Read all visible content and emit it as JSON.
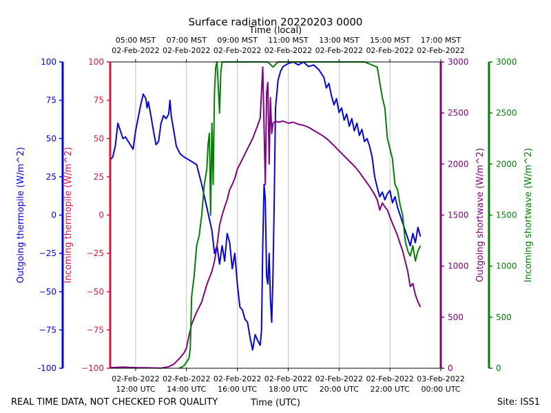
{
  "chart_data": {
    "type": "line",
    "title": "Surface radiation 20220203 0000",
    "top_axis_label": "Time (local)",
    "xlabel": "Time (UTC)",
    "footer_left": "REAL TIME DATA, NOT CHECKED FOR QUALITY",
    "footer_right": "Site: ISS1",
    "x_range_hours": [
      11,
      24
    ],
    "x_ticks_utc": [
      {
        "line1": "02-Feb-2022",
        "line2": "12:00 UTC"
      },
      {
        "line1": "02-Feb-2022",
        "line2": "14:00 UTC"
      },
      {
        "line1": "02-Feb-2022",
        "line2": "16:00 UTC"
      },
      {
        "line1": "02-Feb-2022",
        "line2": "18:00 UTC"
      },
      {
        "line1": "02-Feb-2022",
        "line2": "20:00 UTC"
      },
      {
        "line1": "02-Feb-2022",
        "line2": "22:00 UTC"
      },
      {
        "line1": "03-Feb-2022",
        "line2": "00:00 UTC"
      }
    ],
    "x_ticks_local": [
      {
        "line1": "05:00 MST",
        "line2": "02-Feb-2022"
      },
      {
        "line1": "07:00 MST",
        "line2": "02-Feb-2022"
      },
      {
        "line1": "09:00 MST",
        "line2": "02-Feb-2022"
      },
      {
        "line1": "11:00 MST",
        "line2": "02-Feb-2022"
      },
      {
        "line1": "13:00 MST",
        "line2": "02-Feb-2022"
      },
      {
        "line1": "15:00 MST",
        "line2": "02-Feb-2022"
      },
      {
        "line1": "17:00 MST",
        "line2": "02-Feb-2022"
      }
    ],
    "grid": "vertical",
    "axes": {
      "outgoing_thermopile": {
        "label": "Outgoing thermopile (W/m^2)",
        "color": "#0000ee",
        "range": [
          -100,
          100
        ],
        "ticks": [
          "-100",
          "−75",
          "−50",
          "−25",
          "0",
          "25",
          "50",
          "75",
          "100"
        ],
        "tick_values": [
          -100,
          -75,
          -50,
          -25,
          0,
          25,
          50,
          75,
          100
        ]
      },
      "incoming_thermopile": {
        "label": "Incoming thermopile (W/m^2)",
        "color": "#dc143c",
        "range": [
          -100,
          100
        ],
        "ticks": [
          "−100",
          "−75",
          "−50",
          "−25",
          "0",
          "25",
          "50",
          "75",
          "100"
        ],
        "tick_values": [
          -100,
          -75,
          -50,
          -25,
          0,
          25,
          50,
          75,
          100
        ]
      },
      "outgoing_shortwave": {
        "label": "Outgoing shortwave (W/m^2)",
        "color": "#800080",
        "range": [
          0,
          3000
        ],
        "ticks": [
          "0",
          "500",
          "1000",
          "1500",
          "2000",
          "2500",
          "3000"
        ],
        "tick_values": [
          0,
          500,
          1000,
          1500,
          2000,
          2500,
          3000
        ]
      },
      "incoming_shortwave": {
        "label": "Incoming shortwave (W/m^2)",
        "color": "#008000",
        "range": [
          0,
          3000
        ],
        "ticks": [
          "0",
          "500",
          "1000",
          "1500",
          "2000",
          "2500",
          "3000"
        ],
        "tick_values": [
          0,
          500,
          1000,
          1500,
          2000,
          2500,
          3000
        ]
      }
    },
    "series": [
      {
        "axis": "outgoing_thermopile",
        "color": "#0000ee",
        "points": [
          [
            11,
            36
          ],
          [
            11.1,
            38
          ],
          [
            11.2,
            45
          ],
          [
            11.3,
            60
          ],
          [
            11.4,
            55
          ],
          [
            11.5,
            50
          ],
          [
            11.6,
            51
          ],
          [
            11.75,
            47
          ],
          [
            11.9,
            43
          ],
          [
            12.0,
            55
          ],
          [
            12.2,
            72
          ],
          [
            12.3,
            79
          ],
          [
            12.4,
            76
          ],
          [
            12.45,
            70
          ],
          [
            12.5,
            74
          ],
          [
            12.6,
            65
          ],
          [
            12.7,
            55
          ],
          [
            12.8,
            46
          ],
          [
            12.9,
            48
          ],
          [
            13.0,
            60
          ],
          [
            13.1,
            65
          ],
          [
            13.2,
            63
          ],
          [
            13.3,
            66
          ],
          [
            13.35,
            75
          ],
          [
            13.4,
            65
          ],
          [
            13.5,
            55
          ],
          [
            13.6,
            45
          ],
          [
            13.75,
            40
          ],
          [
            13.9,
            38
          ],
          [
            14.0,
            37
          ],
          [
            14.2,
            35
          ],
          [
            14.4,
            33
          ],
          [
            14.6,
            20
          ],
          [
            14.8,
            5
          ],
          [
            15.0,
            -10
          ],
          [
            15.1,
            -25
          ],
          [
            15.2,
            -20
          ],
          [
            15.3,
            -32
          ],
          [
            15.4,
            -20
          ],
          [
            15.5,
            -30
          ],
          [
            15.6,
            -12
          ],
          [
            15.7,
            -18
          ],
          [
            15.8,
            -35
          ],
          [
            15.9,
            -25
          ],
          [
            16.0,
            -45
          ],
          [
            16.1,
            -60
          ],
          [
            16.2,
            -62
          ],
          [
            16.3,
            -68
          ],
          [
            16.4,
            -70
          ],
          [
            16.5,
            -80
          ],
          [
            16.6,
            -88
          ],
          [
            16.7,
            -78
          ],
          [
            16.8,
            -82
          ],
          [
            16.9,
            -85
          ],
          [
            16.95,
            -75
          ],
          [
            17.0,
            -20
          ],
          [
            17.05,
            20
          ],
          [
            17.1,
            10
          ],
          [
            17.15,
            -40
          ],
          [
            17.2,
            -45
          ],
          [
            17.25,
            -25
          ],
          [
            17.3,
            -55
          ],
          [
            17.35,
            -70
          ],
          [
            17.4,
            -40
          ],
          [
            17.45,
            10
          ],
          [
            17.5,
            70
          ],
          [
            17.6,
            88
          ],
          [
            17.7,
            94
          ],
          [
            17.8,
            97
          ],
          [
            18.0,
            99
          ],
          [
            18.2,
            100
          ],
          [
            18.4,
            98
          ],
          [
            18.6,
            100
          ],
          [
            18.8,
            97
          ],
          [
            19.0,
            98
          ],
          [
            19.2,
            95
          ],
          [
            19.4,
            90
          ],
          [
            19.5,
            83
          ],
          [
            19.6,
            86
          ],
          [
            19.7,
            78
          ],
          [
            19.8,
            72
          ],
          [
            19.9,
            76
          ],
          [
            20.0,
            67
          ],
          [
            20.1,
            70
          ],
          [
            20.2,
            62
          ],
          [
            20.3,
            66
          ],
          [
            20.4,
            58
          ],
          [
            20.5,
            63
          ],
          [
            20.6,
            55
          ],
          [
            20.7,
            60
          ],
          [
            20.8,
            52
          ],
          [
            20.9,
            56
          ],
          [
            21.0,
            48
          ],
          [
            21.1,
            50
          ],
          [
            21.2,
            45
          ],
          [
            21.3,
            38
          ],
          [
            21.4,
            25
          ],
          [
            21.5,
            18
          ],
          [
            21.6,
            12
          ],
          [
            21.7,
            15
          ],
          [
            21.8,
            10
          ],
          [
            21.9,
            14
          ],
          [
            22.0,
            16
          ],
          [
            22.1,
            8
          ],
          [
            22.2,
            12
          ],
          [
            22.3,
            5
          ],
          [
            22.4,
            0
          ],
          [
            22.5,
            -5
          ],
          [
            22.6,
            -10
          ],
          [
            22.7,
            -15
          ],
          [
            22.8,
            -20
          ],
          [
            22.9,
            -12
          ],
          [
            23.0,
            -18
          ],
          [
            23.1,
            -8
          ],
          [
            23.2,
            -14
          ]
        ]
      },
      {
        "axis": "outgoing_shortwave",
        "color": "#800080",
        "points": [
          [
            11,
            5
          ],
          [
            11.5,
            12
          ],
          [
            12.0,
            6
          ],
          [
            12.5,
            4
          ],
          [
            13.0,
            2
          ],
          [
            13.3,
            15
          ],
          [
            13.5,
            40
          ],
          [
            13.7,
            90
          ],
          [
            13.9,
            150
          ],
          [
            14.0,
            200
          ],
          [
            14.1,
            320
          ],
          [
            14.2,
            430
          ],
          [
            14.4,
            550
          ],
          [
            14.6,
            650
          ],
          [
            14.8,
            820
          ],
          [
            15.0,
            950
          ],
          [
            15.1,
            1050
          ],
          [
            15.2,
            1200
          ],
          [
            15.3,
            1400
          ],
          [
            15.4,
            1500
          ],
          [
            15.5,
            1580
          ],
          [
            15.6,
            1650
          ],
          [
            15.7,
            1750
          ],
          [
            15.8,
            1800
          ],
          [
            15.9,
            1860
          ],
          [
            16.0,
            1950
          ],
          [
            16.2,
            2050
          ],
          [
            16.4,
            2150
          ],
          [
            16.6,
            2250
          ],
          [
            16.8,
            2380
          ],
          [
            16.9,
            2450
          ],
          [
            17.0,
            2950
          ],
          [
            17.1,
            1800
          ],
          [
            17.15,
            2700
          ],
          [
            17.2,
            2800
          ],
          [
            17.25,
            2000
          ],
          [
            17.3,
            2650
          ],
          [
            17.35,
            2300
          ],
          [
            17.4,
            2400
          ],
          [
            17.5,
            2420
          ],
          [
            17.6,
            2410
          ],
          [
            17.8,
            2420
          ],
          [
            18.0,
            2400
          ],
          [
            18.2,
            2410
          ],
          [
            18.4,
            2390
          ],
          [
            18.6,
            2380
          ],
          [
            18.8,
            2360
          ],
          [
            19.0,
            2330
          ],
          [
            19.2,
            2300
          ],
          [
            19.4,
            2270
          ],
          [
            19.6,
            2230
          ],
          [
            19.8,
            2180
          ],
          [
            20.0,
            2130
          ],
          [
            20.2,
            2080
          ],
          [
            20.4,
            2030
          ],
          [
            20.6,
            1980
          ],
          [
            20.8,
            1920
          ],
          [
            21.0,
            1850
          ],
          [
            21.2,
            1780
          ],
          [
            21.4,
            1700
          ],
          [
            21.5,
            1650
          ],
          [
            21.6,
            1550
          ],
          [
            21.7,
            1620
          ],
          [
            21.8,
            1580
          ],
          [
            21.9,
            1550
          ],
          [
            22.0,
            1480
          ],
          [
            22.1,
            1420
          ],
          [
            22.2,
            1360
          ],
          [
            22.3,
            1300
          ],
          [
            22.4,
            1220
          ],
          [
            22.5,
            1150
          ],
          [
            22.6,
            1050
          ],
          [
            22.7,
            950
          ],
          [
            22.8,
            800
          ],
          [
            22.9,
            830
          ],
          [
            23.0,
            720
          ],
          [
            23.1,
            650
          ],
          [
            23.2,
            600
          ]
        ]
      },
      {
        "axis": "incoming_shortwave",
        "color": "#008000",
        "points": [
          [
            13.7,
            0
          ],
          [
            13.8,
            10
          ],
          [
            13.9,
            25
          ],
          [
            14.0,
            60
          ],
          [
            14.1,
            100
          ],
          [
            14.15,
            200
          ],
          [
            14.2,
            700
          ],
          [
            14.3,
            900
          ],
          [
            14.4,
            1200
          ],
          [
            14.5,
            1300
          ],
          [
            14.6,
            1500
          ],
          [
            14.7,
            1800
          ],
          [
            14.8,
            1950
          ],
          [
            14.85,
            2200
          ],
          [
            14.9,
            2300
          ],
          [
            14.95,
            1500
          ],
          [
            15.0,
            2400
          ],
          [
            15.05,
            1800
          ],
          [
            15.1,
            2700
          ],
          [
            15.15,
            2950
          ],
          [
            15.2,
            3000
          ],
          [
            15.3,
            2500
          ],
          [
            15.35,
            2900
          ],
          [
            15.4,
            3000
          ],
          [
            17.2,
            3000
          ],
          [
            17.4,
            2950
          ],
          [
            17.6,
            3000
          ],
          [
            19.0,
            3000
          ],
          [
            21.0,
            3000
          ],
          [
            21.5,
            2950
          ],
          [
            21.6,
            2800
          ],
          [
            21.7,
            2650
          ],
          [
            21.8,
            2550
          ],
          [
            21.9,
            2250
          ],
          [
            22.0,
            2150
          ],
          [
            22.1,
            2050
          ],
          [
            22.2,
            1800
          ],
          [
            22.3,
            1750
          ],
          [
            22.4,
            1600
          ],
          [
            22.5,
            1500
          ],
          [
            22.6,
            1250
          ],
          [
            22.7,
            1150
          ],
          [
            22.8,
            1100
          ],
          [
            22.9,
            1200
          ],
          [
            23.0,
            1050
          ],
          [
            23.1,
            1150
          ],
          [
            23.2,
            1200
          ]
        ]
      }
    ]
  }
}
